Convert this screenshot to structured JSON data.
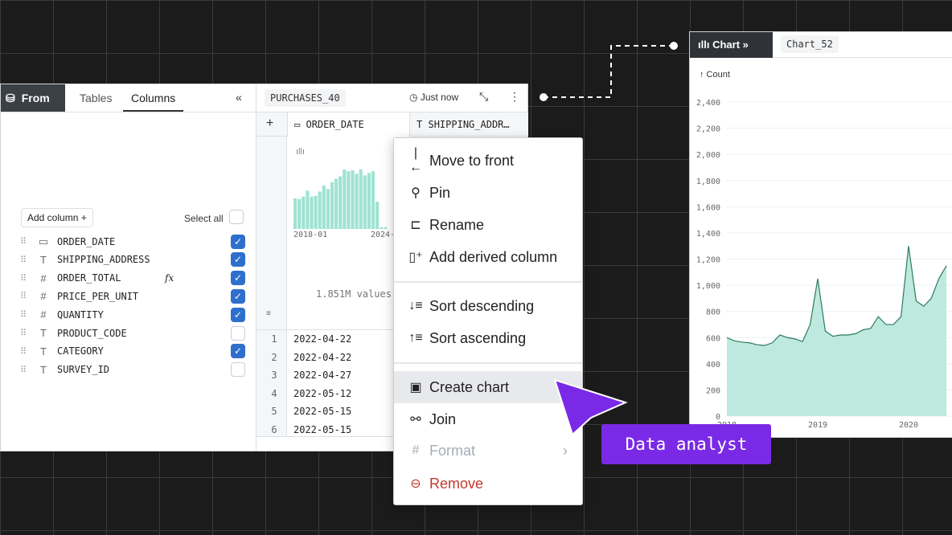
{
  "left_panel": {
    "from_label": "From",
    "tabs": [
      "Tables",
      "Columns"
    ],
    "active_tab": "Columns",
    "collapse_icon": "double-chevron-left",
    "add_column": "Add column +",
    "select_all": "Select all",
    "columns": [
      {
        "name": "ORDER_DATE",
        "type": "date",
        "checked": true
      },
      {
        "name": "SHIPPING_ADDRESS",
        "type": "text",
        "checked": true
      },
      {
        "name": "ORDER_TOTAL",
        "type": "number",
        "checked": true,
        "formula": "fx"
      },
      {
        "name": "PRICE_PER_UNIT",
        "type": "number",
        "checked": true
      },
      {
        "name": "QUANTITY",
        "type": "number",
        "checked": true
      },
      {
        "name": "PRODUCT_CODE",
        "type": "text",
        "checked": false
      },
      {
        "name": "CATEGORY",
        "type": "text",
        "checked": true
      },
      {
        "name": "SURVEY_ID",
        "type": "text",
        "checked": false
      }
    ]
  },
  "table": {
    "name": "PURCHASES_40",
    "updated": "Just now",
    "headers": [
      "ORDER_DATE",
      "SHIPPING_ADDR…"
    ],
    "histogram": {
      "values": [
        36,
        35,
        38,
        45,
        38,
        39,
        44,
        51,
        47,
        55,
        59,
        62,
        70,
        68,
        69,
        65,
        70,
        63,
        66,
        68,
        32,
        2,
        2
      ],
      "x_start": "2018-01",
      "x_end": "2024-"
    },
    "value_count": "1.851M values",
    "rows": [
      {
        "n": "1",
        "date": "2022-04-22"
      },
      {
        "n": "2",
        "date": "2022-04-22"
      },
      {
        "n": "3",
        "date": "2022-04-27"
      },
      {
        "n": "4",
        "date": "2022-05-12"
      },
      {
        "n": "5",
        "date": "2022-05-15"
      },
      {
        "n": "6",
        "date": "2022-05-15"
      }
    ]
  },
  "context_menu": {
    "items": [
      {
        "label": "Move to front",
        "icon": "move-to-front"
      },
      {
        "label": "Pin",
        "icon": "pin"
      },
      {
        "label": "Rename",
        "icon": "rename"
      },
      {
        "label": "Add derived column",
        "icon": "add-column"
      },
      {
        "label": "Sort descending",
        "icon": "sort-desc"
      },
      {
        "label": "Sort ascending",
        "icon": "sort-asc"
      },
      {
        "label": "Create chart",
        "icon": "chart",
        "highlighted": true
      },
      {
        "label": "Join",
        "icon": "join"
      },
      {
        "label": "Format",
        "icon": "hash",
        "disabled": true,
        "submenu": true
      },
      {
        "label": "Remove",
        "icon": "minus-circle",
        "color": "#c0392b"
      }
    ]
  },
  "cursor_label": "Data analyst",
  "accent": "#7a2ae6",
  "chart_panel": {
    "tab_label": "Chart",
    "chart_name": "Chart_52",
    "chart_data": {
      "type": "area",
      "ylabel": "↑ Count",
      "ylim": [
        0,
        2500
      ],
      "yticks": [
        0,
        200,
        400,
        600,
        800,
        1000,
        1200,
        1400,
        1600,
        1800,
        2000,
        2200,
        2400
      ],
      "xticks": [
        "2018",
        "2019",
        "2020"
      ],
      "x": [
        "2018-01",
        "2018-02",
        "2018-03",
        "2018-04",
        "2018-05",
        "2018-06",
        "2018-07",
        "2018-08",
        "2018-09",
        "2018-10",
        "2018-11",
        "2018-12",
        "2019-01",
        "2019-02",
        "2019-03",
        "2019-04",
        "2019-05",
        "2019-06",
        "2019-07",
        "2019-08",
        "2019-09",
        "2019-10",
        "2019-11",
        "2019-12",
        "2020-01",
        "2020-02",
        "2020-03",
        "2020-04",
        "2020-05",
        "2020-06"
      ],
      "series": [
        {
          "values": [
            600,
            575,
            565,
            560,
            545,
            540,
            560,
            620,
            600,
            590,
            570,
            700,
            1050,
            650,
            610,
            620,
            620,
            630,
            660,
            670,
            760,
            700,
            700,
            760,
            1300,
            880,
            840,
            900,
            1050,
            1150
          ]
        }
      ],
      "color": "#5fb89b",
      "fill": "#bde9de"
    }
  }
}
